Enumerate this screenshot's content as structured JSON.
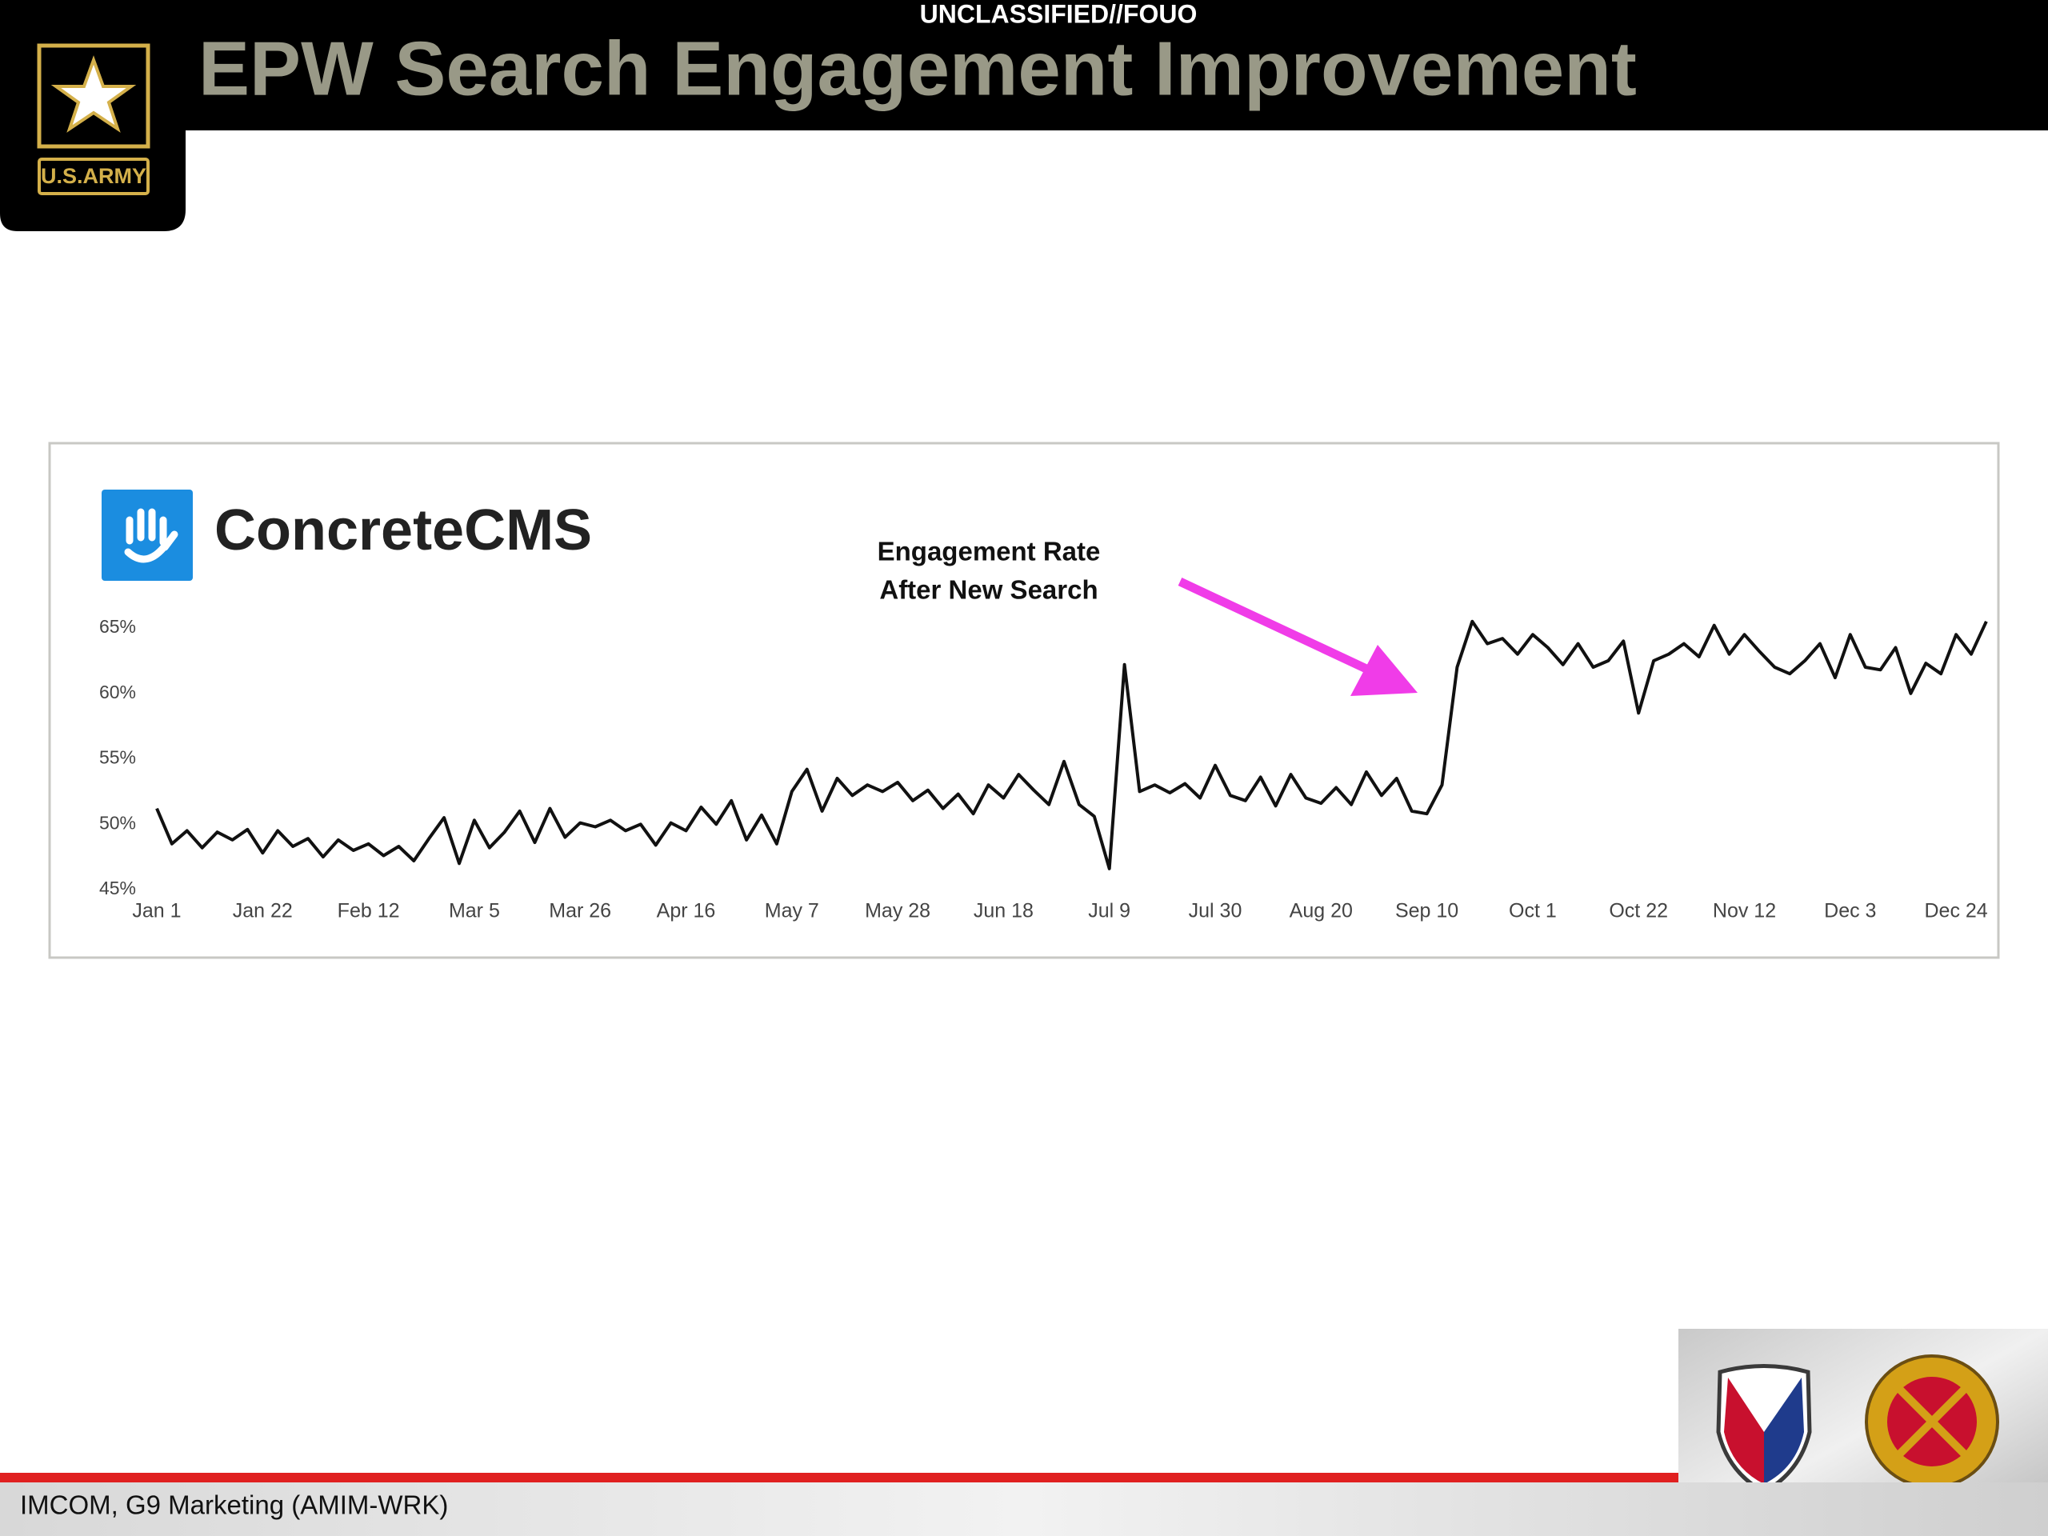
{
  "header": {
    "classification": "UNCLASSIFIED//FOUO",
    "title": "EPW Search Engagement Improvement",
    "logo_text": "U.S.ARMY"
  },
  "chart_logo": "ConcreteCMS",
  "chart_data": {
    "type": "line",
    "annotation": [
      "Engagement Rate",
      "After New Search"
    ],
    "color": "#111111",
    "grid": false,
    "x": [
      0,
      3,
      6,
      9,
      12,
      15,
      18,
      21,
      24,
      27,
      30,
      33,
      36,
      39,
      42,
      45,
      48,
      51,
      54,
      57,
      60,
      63,
      66,
      69,
      72,
      75,
      78,
      81,
      84,
      87,
      90,
      93,
      96,
      99,
      102,
      105,
      108,
      111,
      114,
      117,
      120,
      123,
      126,
      129,
      132,
      135,
      138,
      141,
      144,
      147,
      150,
      153,
      156,
      159,
      162,
      165,
      168,
      171,
      174,
      177,
      180,
      183,
      186,
      189,
      192,
      195,
      198,
      201,
      204,
      207,
      210,
      213,
      216,
      219,
      222,
      225,
      228,
      231,
      234,
      237,
      240,
      243,
      246,
      249,
      252,
      255,
      258,
      261,
      264,
      267,
      270,
      273,
      276,
      279,
      282,
      285,
      288,
      291,
      294,
      297,
      300,
      303,
      306,
      309,
      312,
      315,
      318,
      321,
      324,
      327,
      330,
      333,
      336,
      339,
      342,
      345,
      348,
      351,
      354,
      357,
      360,
      363
    ],
    "values": [
      51.2,
      48.5,
      49.5,
      48.2,
      49.4,
      48.8,
      49.6,
      47.8,
      49.5,
      48.3,
      48.9,
      47.5,
      48.8,
      48.0,
      48.5,
      47.6,
      48.3,
      47.2,
      48.9,
      50.5,
      47.0,
      50.3,
      48.2,
      49.4,
      51.0,
      48.6,
      51.2,
      49.0,
      50.1,
      49.8,
      50.3,
      49.5,
      50.0,
      48.4,
      50.1,
      49.5,
      51.3,
      50.0,
      51.8,
      48.8,
      50.7,
      48.5,
      52.5,
      54.2,
      51.0,
      53.5,
      52.2,
      53.0,
      52.5,
      53.2,
      51.8,
      52.6,
      51.2,
      52.3,
      50.8,
      53.0,
      52.0,
      53.8,
      52.6,
      51.5,
      54.8,
      51.5,
      50.6,
      46.6,
      62.2,
      52.5,
      53.0,
      52.4,
      53.1,
      52.0,
      54.5,
      52.2,
      51.8,
      53.6,
      51.4,
      53.8,
      52.0,
      51.6,
      52.8,
      51.5,
      54.0,
      52.2,
      53.5,
      51.0,
      50.8,
      53.0,
      62.0,
      65.5,
      63.8,
      64.2,
      63.0,
      64.5,
      63.5,
      62.2,
      63.8,
      62.0,
      62.5,
      64.0,
      58.5,
      62.5,
      63.0,
      63.8,
      62.8,
      65.2,
      63.0,
      64.5,
      63.2,
      62.0,
      61.5,
      62.5,
      63.8,
      61.2,
      64.5,
      62.0,
      61.8,
      63.5,
      60.0,
      62.3,
      61.5,
      64.5,
      63.0,
      65.5
    ],
    "xlim": [
      0,
      364
    ],
    "xticks": [
      {
        "value": 0,
        "label": "Jan 1"
      },
      {
        "value": 21,
        "label": "Jan 22"
      },
      {
        "value": 42,
        "label": "Feb 12"
      },
      {
        "value": 63,
        "label": "Mar 5"
      },
      {
        "value": 84,
        "label": "Mar 26"
      },
      {
        "value": 105,
        "label": "Apr 16"
      },
      {
        "value": 126,
        "label": "May 7"
      },
      {
        "value": 147,
        "label": "May 28"
      },
      {
        "value": 168,
        "label": "Jun 18"
      },
      {
        "value": 189,
        "label": "Jul 9"
      },
      {
        "value": 210,
        "label": "Jul 30"
      },
      {
        "value": 231,
        "label": "Aug 20"
      },
      {
        "value": 252,
        "label": "Sep 10"
      },
      {
        "value": 273,
        "label": "Oct 1"
      },
      {
        "value": 294,
        "label": "Oct 22"
      },
      {
        "value": 315,
        "label": "Nov 12"
      },
      {
        "value": 336,
        "label": "Dec 3"
      },
      {
        "value": 357,
        "label": "Dec 24"
      }
    ],
    "ylim": [
      45,
      65
    ],
    "yticks": [
      {
        "value": 45,
        "label": "45%"
      },
      {
        "value": 50,
        "label": "50%"
      },
      {
        "value": 55,
        "label": "55%"
      },
      {
        "value": 60,
        "label": "60%"
      },
      {
        "value": 65,
        "label": "65%"
      }
    ]
  },
  "footer": {
    "text": "IMCOM, G9 Marketing (AMIM-WRK)"
  }
}
